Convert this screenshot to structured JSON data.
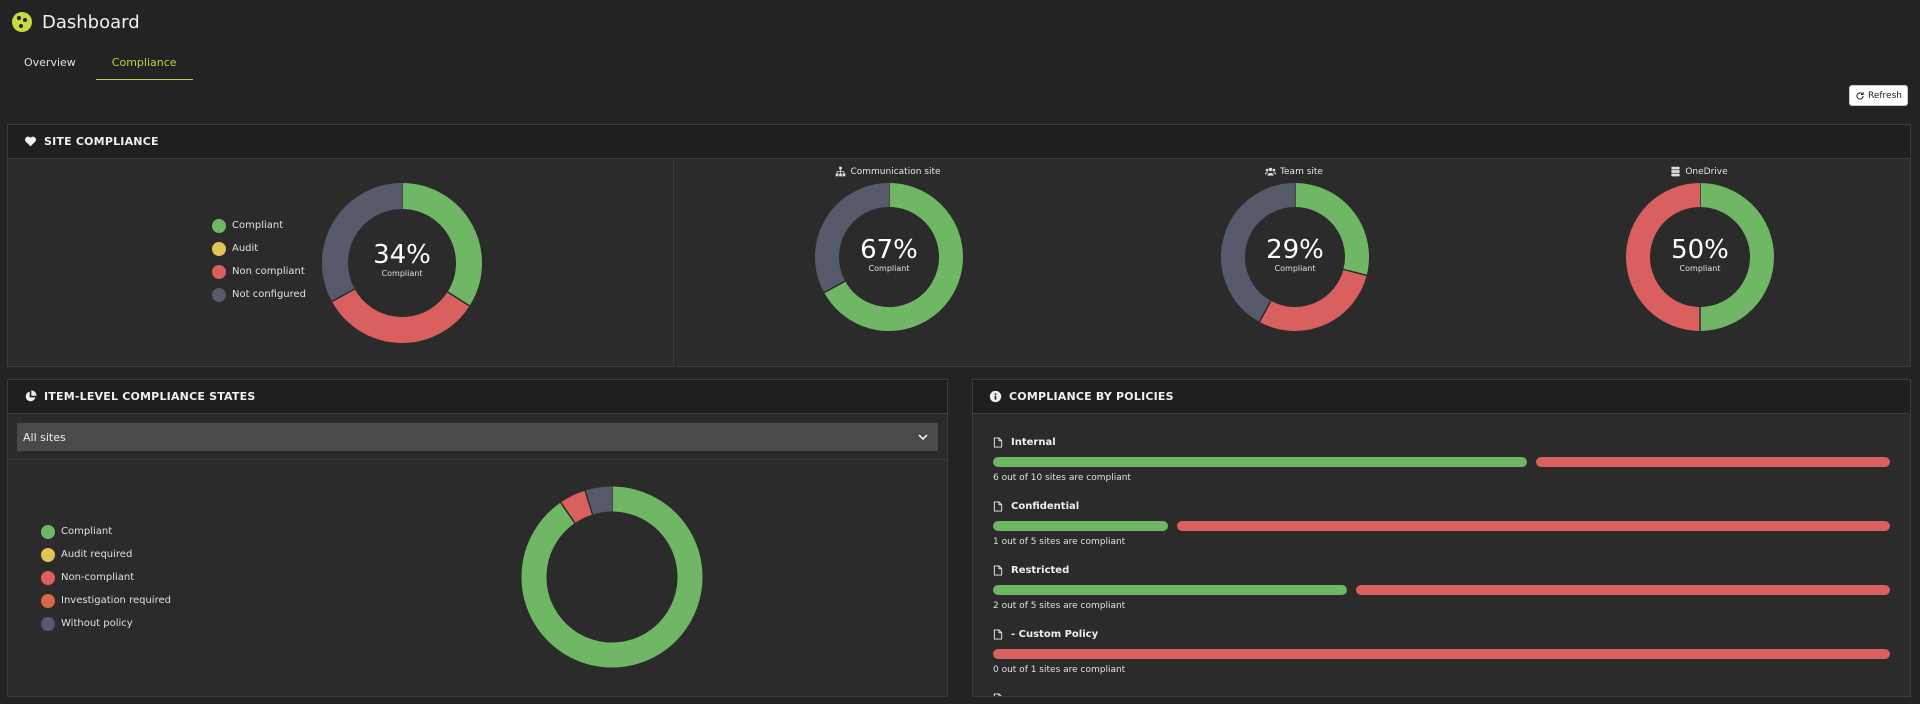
{
  "app": {
    "title": "Dashboard"
  },
  "tabs": [
    {
      "label": "Overview",
      "active": false
    },
    {
      "label": "Compliance",
      "active": true
    }
  ],
  "toolbar": {
    "refresh_label": "Refresh"
  },
  "colors": {
    "compliant": "#6fb665",
    "audit": "#e0c556",
    "non_compliant": "#d9605f",
    "investigation": "#d4694a",
    "not_configured": "#565a6b",
    "accent": "#b8d14a"
  },
  "site_compliance": {
    "title": "SITE COMPLIANCE",
    "legend": [
      "Compliant",
      "Audit",
      "Non compliant",
      "Not configured"
    ],
    "overall": {
      "percent": "34%",
      "label": "Compliant",
      "segments": [
        0.34,
        0,
        0.33,
        0.33
      ]
    },
    "communication": {
      "title": "Communication site",
      "percent": "67%",
      "label": "Compliant",
      "segments": [
        0.67,
        0,
        0,
        0.33
      ]
    },
    "team": {
      "title": "Team site",
      "percent": "29%",
      "label": "Compliant",
      "segments": [
        0.29,
        0,
        0.29,
        0.42
      ]
    },
    "onedrive": {
      "title": "OneDrive",
      "percent": "50%",
      "label": "Compliant",
      "segments": [
        0.5,
        0,
        0.5,
        0
      ]
    }
  },
  "item_level": {
    "title": "ITEM-LEVEL COMPLIANCE STATES",
    "select_value": "All sites",
    "legend": [
      "Compliant",
      "Audit required",
      "Non-compliant",
      "Investigation required",
      "Without policy"
    ],
    "segments": [
      0.904,
      0,
      0.048,
      0,
      0.048
    ]
  },
  "policies": {
    "title": "COMPLIANCE BY POLICIES",
    "items": [
      {
        "name": "Internal",
        "compliant_fraction": 0.6,
        "summary": "6 out of 10 sites are compliant"
      },
      {
        "name": "Confidential",
        "compliant_fraction": 0.2,
        "summary": "1 out of 5 sites are compliant"
      },
      {
        "name": "Restricted",
        "compliant_fraction": 0.4,
        "summary": "2 out of 5 sites are compliant"
      },
      {
        "name": "- Custom Policy",
        "compliant_fraction": 0.0,
        "summary": "0 out of 1 sites are compliant"
      }
    ]
  }
}
